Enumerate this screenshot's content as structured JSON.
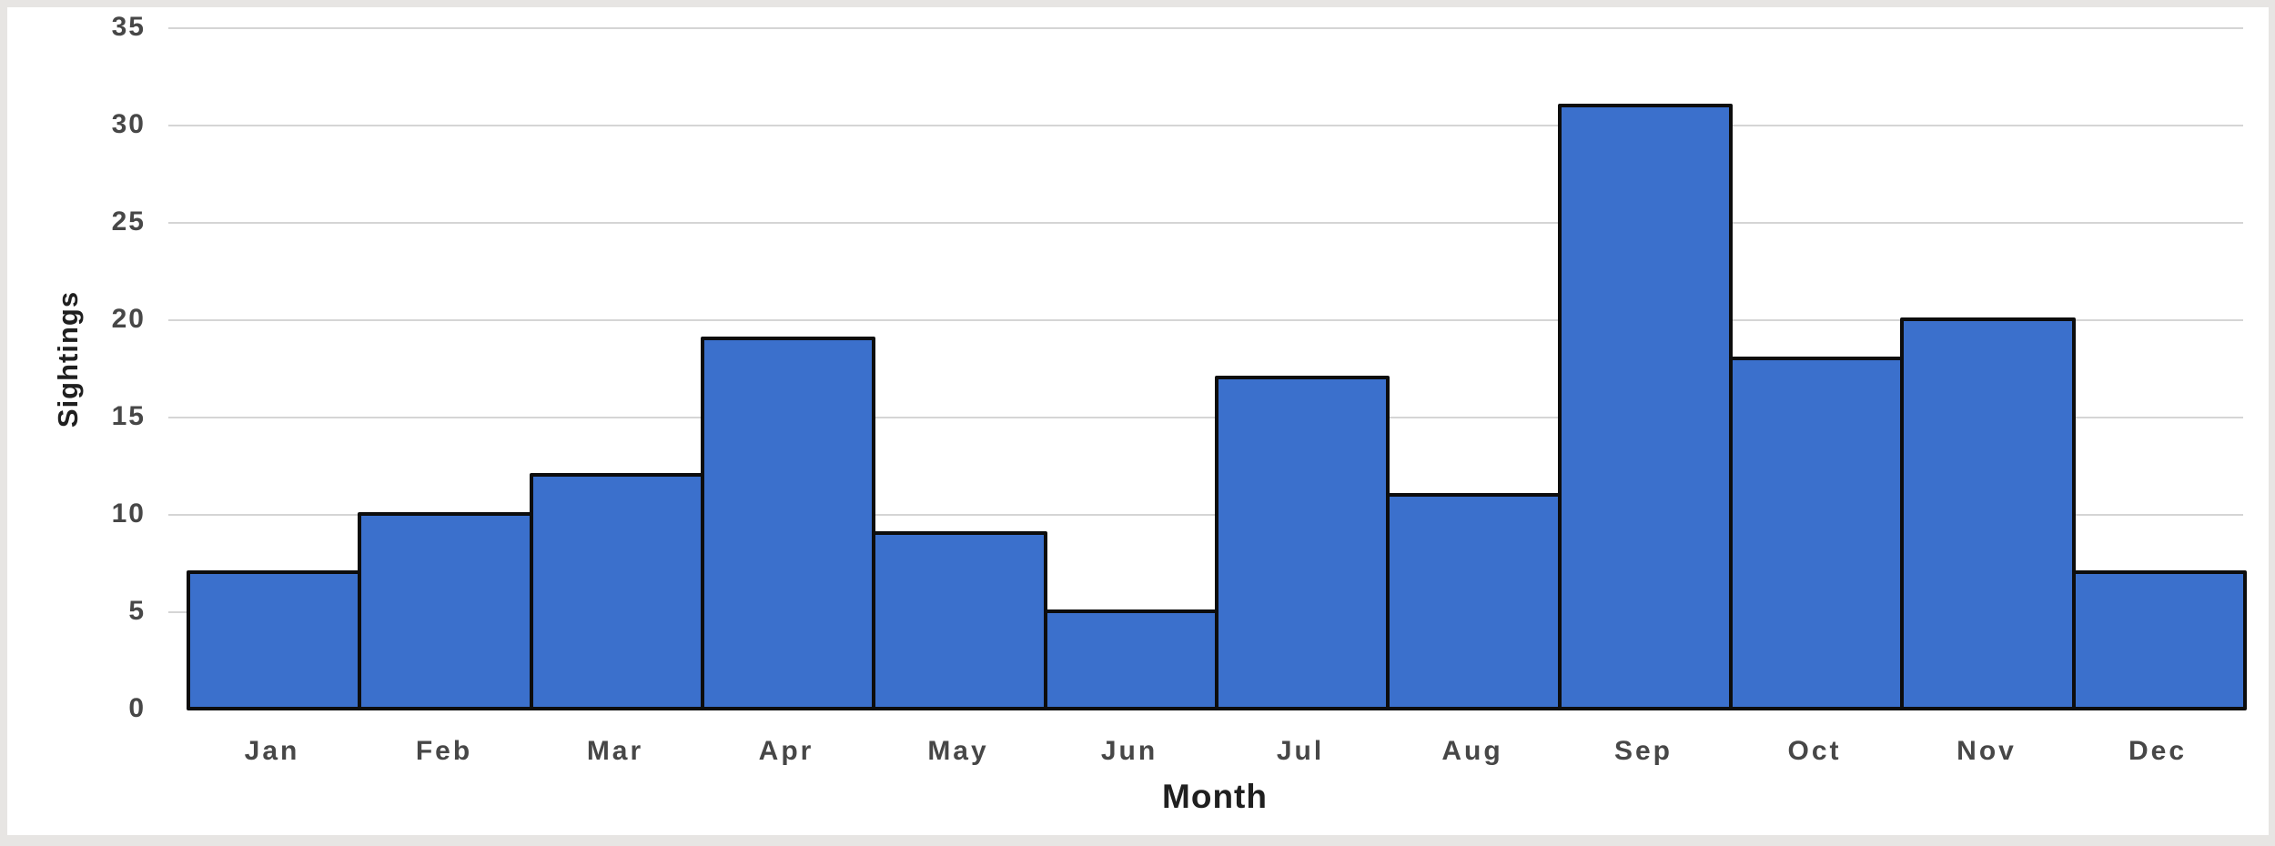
{
  "chart_data": {
    "type": "bar",
    "categories": [
      "Jan",
      "Feb",
      "Mar",
      "Apr",
      "May",
      "Jun",
      "Jul",
      "Aug",
      "Sep",
      "Oct",
      "Nov",
      "Dec"
    ],
    "values": [
      7,
      10,
      12,
      19,
      9,
      5,
      17,
      11,
      31,
      18,
      20,
      7
    ],
    "xlabel": "Month",
    "ylabel": "Sightings",
    "ylim": [
      0,
      35
    ],
    "yticks": [
      0,
      5,
      10,
      15,
      20,
      25,
      30,
      35
    ],
    "grid": true,
    "legend": false,
    "colors": {
      "bar_fill": "#3B70CC",
      "bar_border": "#0D0D0D",
      "gridline": "#D5D5D5",
      "tick_label": "#474747",
      "axis_title": "#1F1F1F",
      "plot_background": "#FFFFFF",
      "frame": "#E7E5E3"
    }
  }
}
